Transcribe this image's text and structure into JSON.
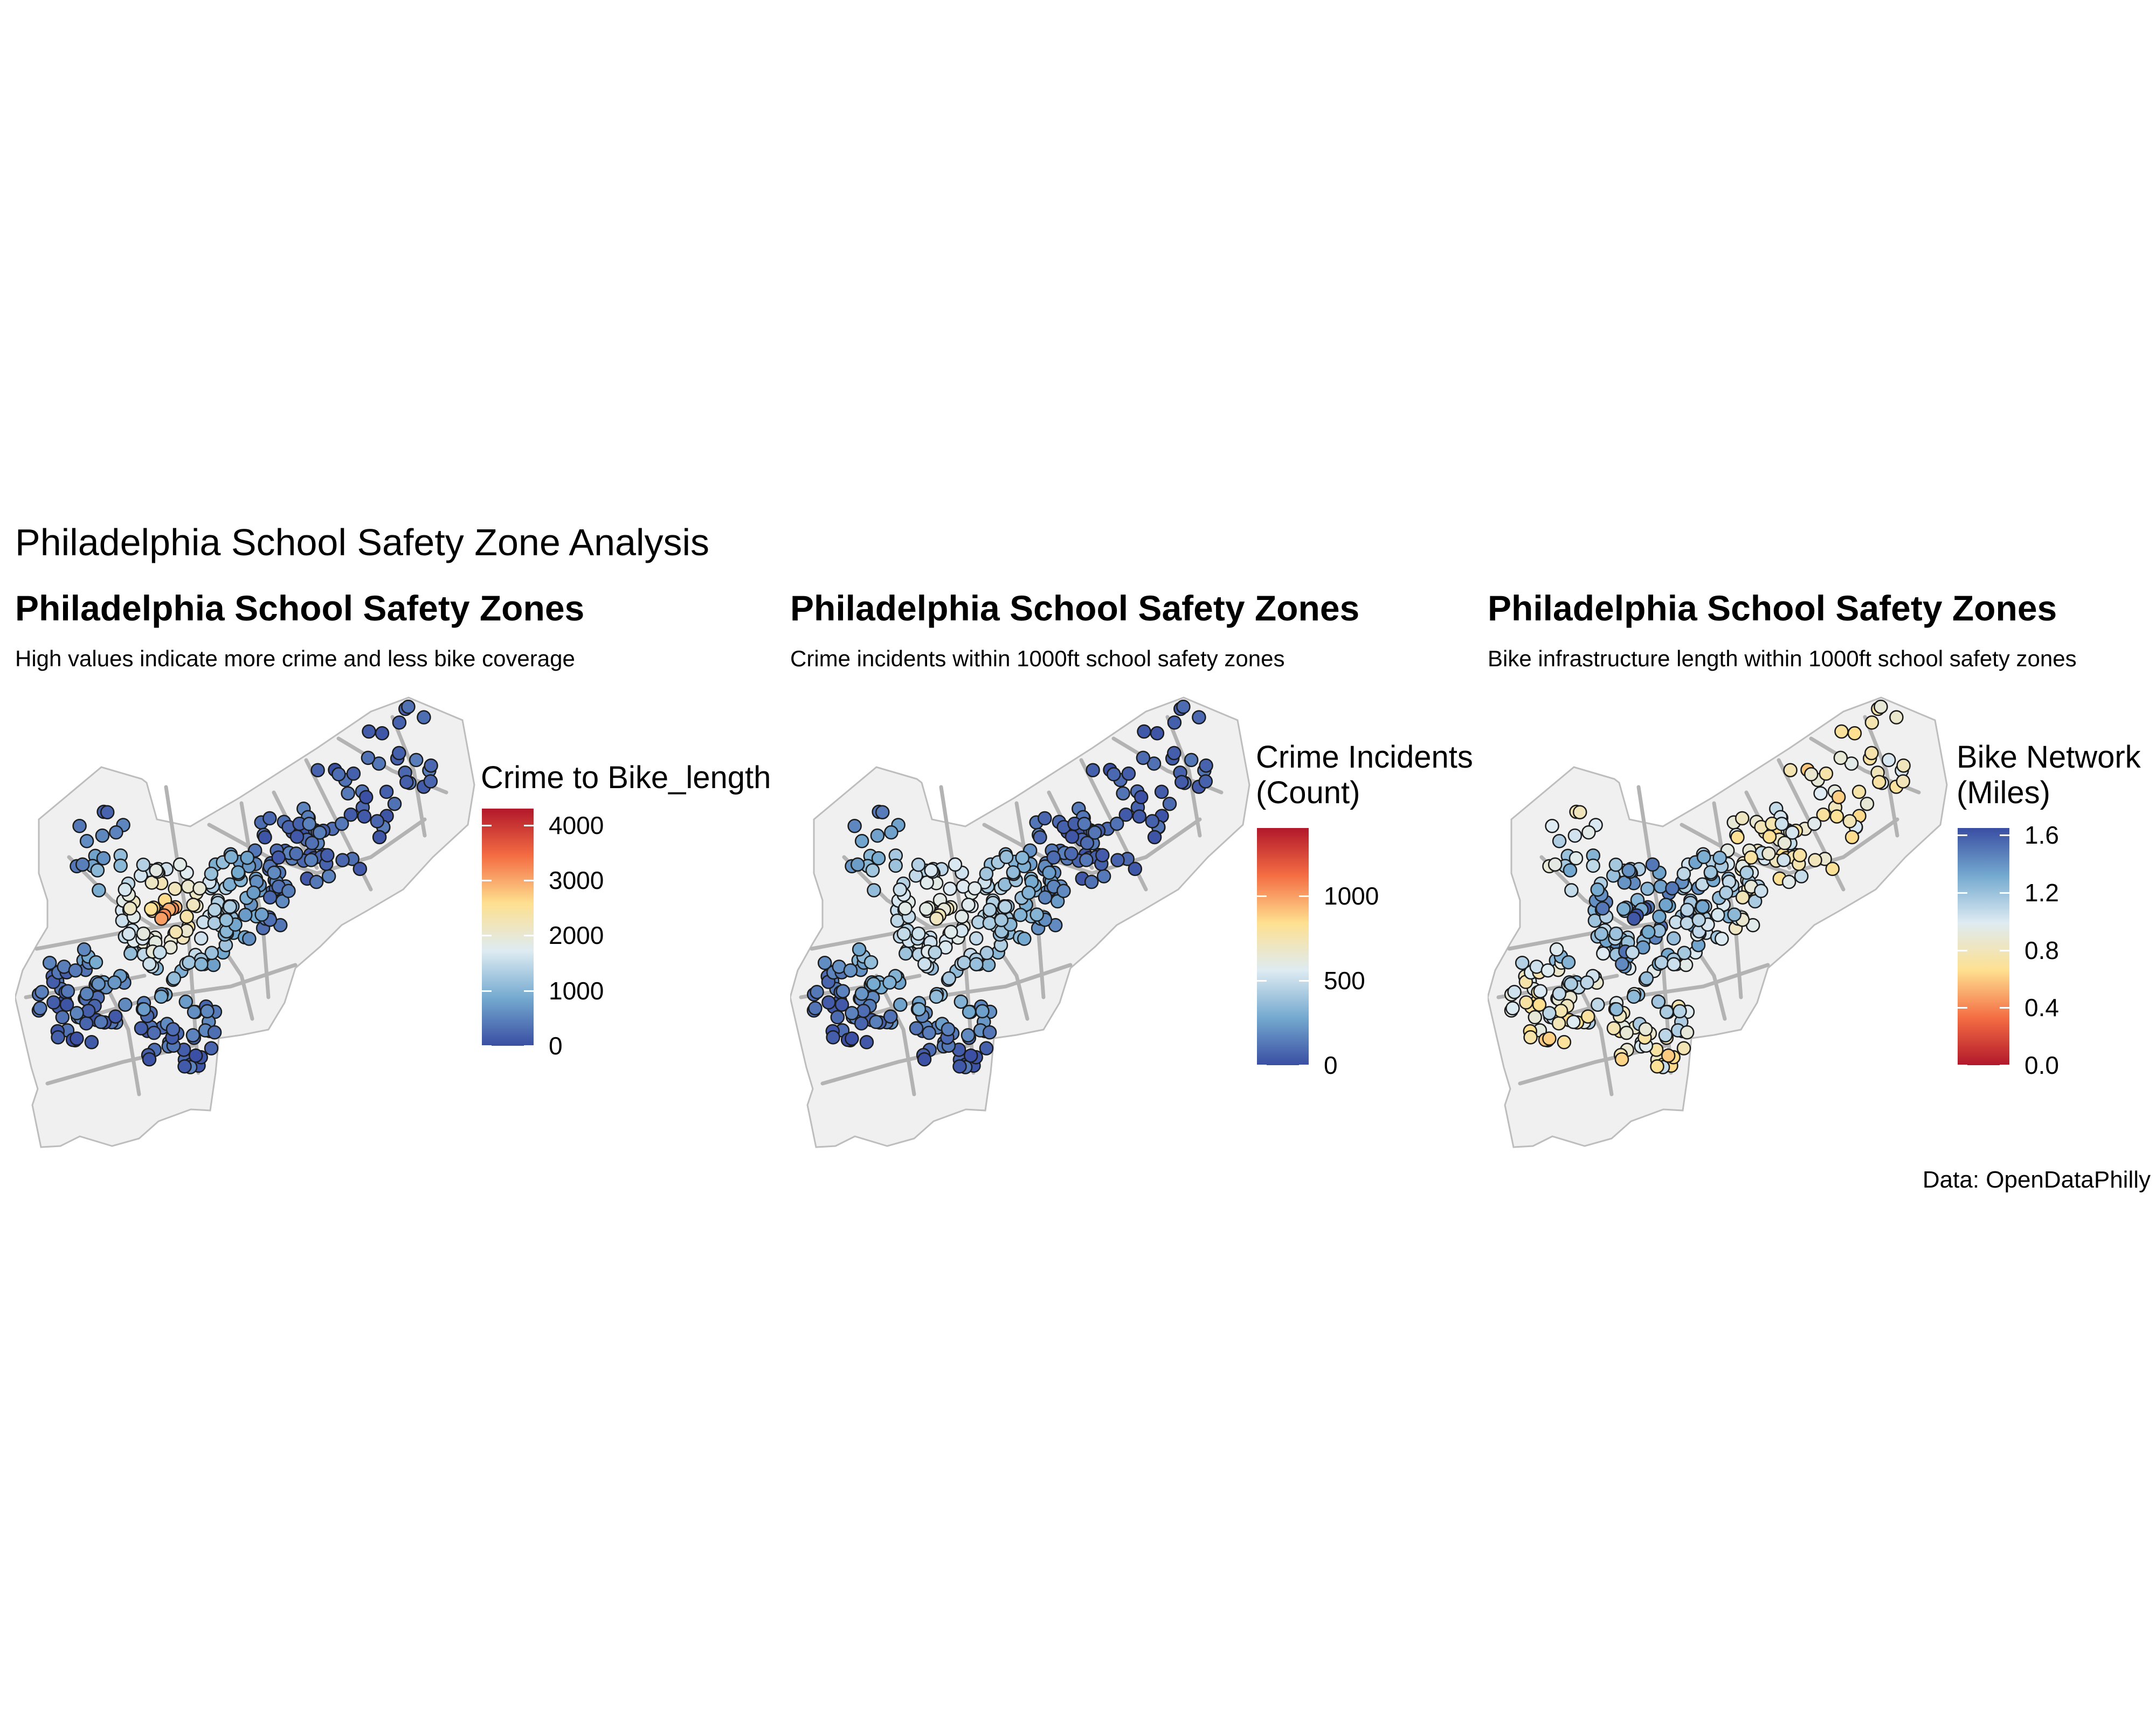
{
  "title": "Philadelphia School Safety Zone Analysis",
  "caption": "Data: OpenDataPhilly",
  "panels": [
    {
      "title": "Philadelphia School Safety Zones",
      "subtitle": "High values indicate more crime and less bike coverage",
      "legend": {
        "title": [
          "Crime to Bike_length"
        ],
        "ticks": [
          "4000",
          "3000",
          "2000",
          "1000",
          "0"
        ],
        "tick_values": [
          4000,
          3000,
          2000,
          1000,
          0
        ],
        "min": 0,
        "max": 4300,
        "colors": [
          "#3a4ea3",
          "#74a9cf",
          "#deebf2",
          "#fee090",
          "#f46d43",
          "#b2182b"
        ]
      }
    },
    {
      "title": "Philadelphia School Safety Zones",
      "subtitle": "Crime incidents within 1000ft school safety zones",
      "legend": {
        "title": [
          "Crime Incidents",
          "(Count)"
        ],
        "ticks": [
          "1000",
          "500",
          "0"
        ],
        "tick_values": [
          1000,
          500,
          0
        ],
        "min": 0,
        "max": 1400,
        "colors": [
          "#3a4ea3",
          "#74a9cf",
          "#deebf2",
          "#fee090",
          "#f46d43",
          "#b2182b"
        ]
      }
    },
    {
      "title": "Philadelphia School Safety Zones",
      "subtitle": "Bike infrastructure length within 1000ft school safety zones",
      "legend": {
        "title": [
          "Bike Network",
          "(Miles)"
        ],
        "ticks": [
          "1.6",
          "1.2",
          "0.8",
          "0.4",
          "0.0"
        ],
        "tick_values": [
          1.6,
          1.2,
          0.8,
          0.4,
          0.0
        ],
        "min": 0,
        "max": 1.65,
        "colors": [
          "#b2182b",
          "#f46d43",
          "#fee090",
          "#deebf2",
          "#74a9cf",
          "#3a4ea3"
        ]
      }
    }
  ],
  "map_style": {
    "land": "#f0f0f0",
    "border": "#bdbdbd",
    "roads": "#b3b3b3",
    "point_outline": "#1a1a1a"
  }
}
